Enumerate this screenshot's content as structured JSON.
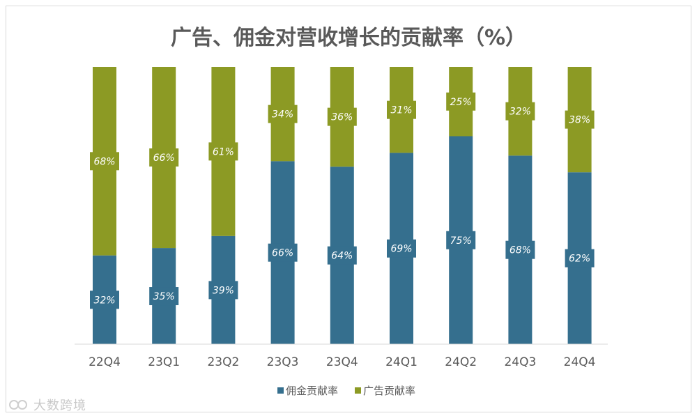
{
  "chart_data": {
    "type": "bar",
    "stacked": true,
    "title": "广告、佣金对营收增长的贡献率（%）",
    "categories": [
      "22Q4",
      "23Q1",
      "23Q2",
      "23Q3",
      "23Q4",
      "24Q1",
      "24Q2",
      "24Q3",
      "24Q4"
    ],
    "series": [
      {
        "name": "佣金贡献率",
        "color": "#356f8e",
        "values": [
          32,
          35,
          39,
          66,
          64,
          69,
          75,
          68,
          62
        ],
        "labels": [
          "32%",
          "35%",
          "39%",
          "66%",
          "64%",
          "69%",
          "75%",
          "68%",
          "62%"
        ]
      },
      {
        "name": "广告贡献率",
        "color": "#8c9a24",
        "values": [
          68,
          66,
          61,
          34,
          36,
          31,
          25,
          32,
          38
        ],
        "labels": [
          "68%",
          "66%",
          "61%",
          "34%",
          "36%",
          "31%",
          "25%",
          "32%",
          "38%"
        ]
      }
    ],
    "ylim": [
      0,
      100
    ],
    "xlabel": "",
    "ylabel": "",
    "legend": "bottom",
    "grid": false
  },
  "watermark": "大数跨境"
}
